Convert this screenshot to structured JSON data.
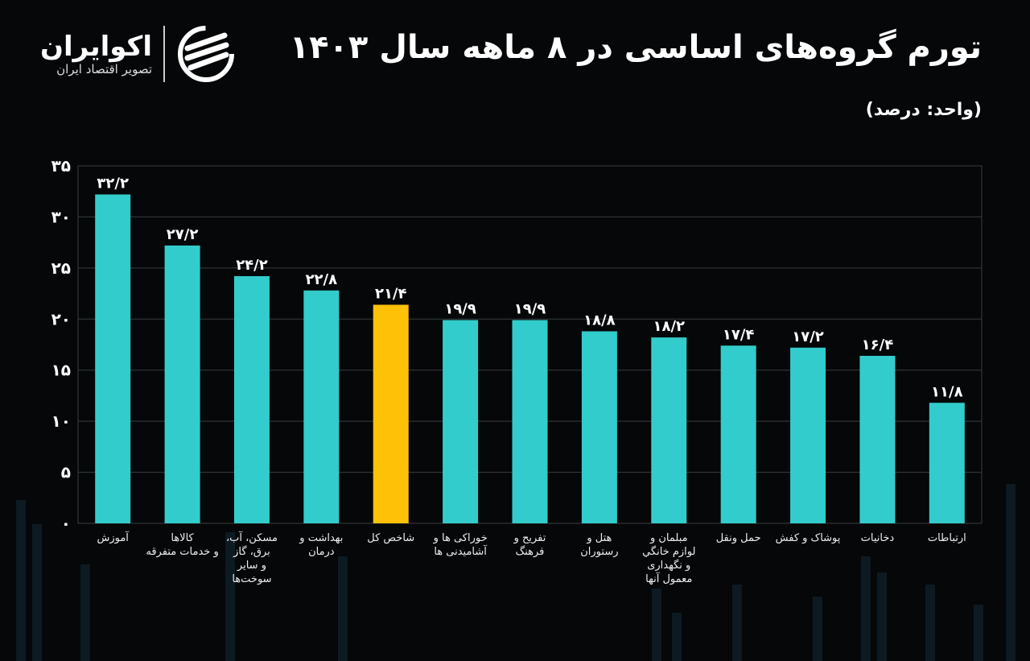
{
  "header": {
    "title": "تورم گروه‌های اساسی در ۸ ماهه سال ۱۴۰۳",
    "unit": "(واحد: درصد)"
  },
  "logo": {
    "name": "اکوایران",
    "tagline": "تصویر اقتصاد ایران",
    "icon": "ecoiran-logo-icon"
  },
  "colors": {
    "bar": "#33CCCC",
    "highlight": "#FFC107",
    "background": "#050709",
    "grid": "#3a3d40"
  },
  "chart_data": {
    "type": "bar",
    "title": "تورم گروه‌های اساسی در ۸ ماهه سال ۱۴۰۳",
    "ylabel": "(واحد: درصد)",
    "ylim": [
      0,
      35
    ],
    "grid": true,
    "yticks": [
      0,
      5,
      10,
      15,
      20,
      25,
      30,
      35
    ],
    "ytick_labels": [
      "۰",
      "۵",
      "۱۰",
      "۱۵",
      "۲۰",
      "۲۵",
      "۳۰",
      "۳۵"
    ],
    "categories": [
      "آموزش",
      "کالاها\nو خدمات متفرقه",
      "مسکن، آب،\nبرق، گاز\nو سایر\nسوخت‌ها",
      "بهداشت و\nدرمان",
      "شاخص کل",
      "خوراکی ها و\nآشامیدنی ها",
      "تفریح و\nفرهنگ",
      "هتل و\nرستوران",
      "مبلمان و\nلوازم خانگي\nو نگهداری\nمعمول آنها",
      "حمل ونقل",
      "پوشاک و کفش",
      "دخانیات",
      "ارتباطات"
    ],
    "values": [
      32.2,
      27.2,
      24.2,
      22.8,
      21.4,
      19.9,
      19.9,
      18.8,
      18.2,
      17.4,
      17.2,
      16.4,
      11.8
    ],
    "data_labels": [
      "۳۲/۲",
      "۲۷/۲",
      "۲۴/۲",
      "۲۲/۸",
      "۲۱/۴",
      "۱۹/۹",
      "۱۹/۹",
      "۱۸/۸",
      "۱۸/۲",
      "۱۷/۴",
      "۱۷/۲",
      "۱۶/۴",
      "۱۱/۸"
    ],
    "highlight_category": "شاخص کل"
  }
}
